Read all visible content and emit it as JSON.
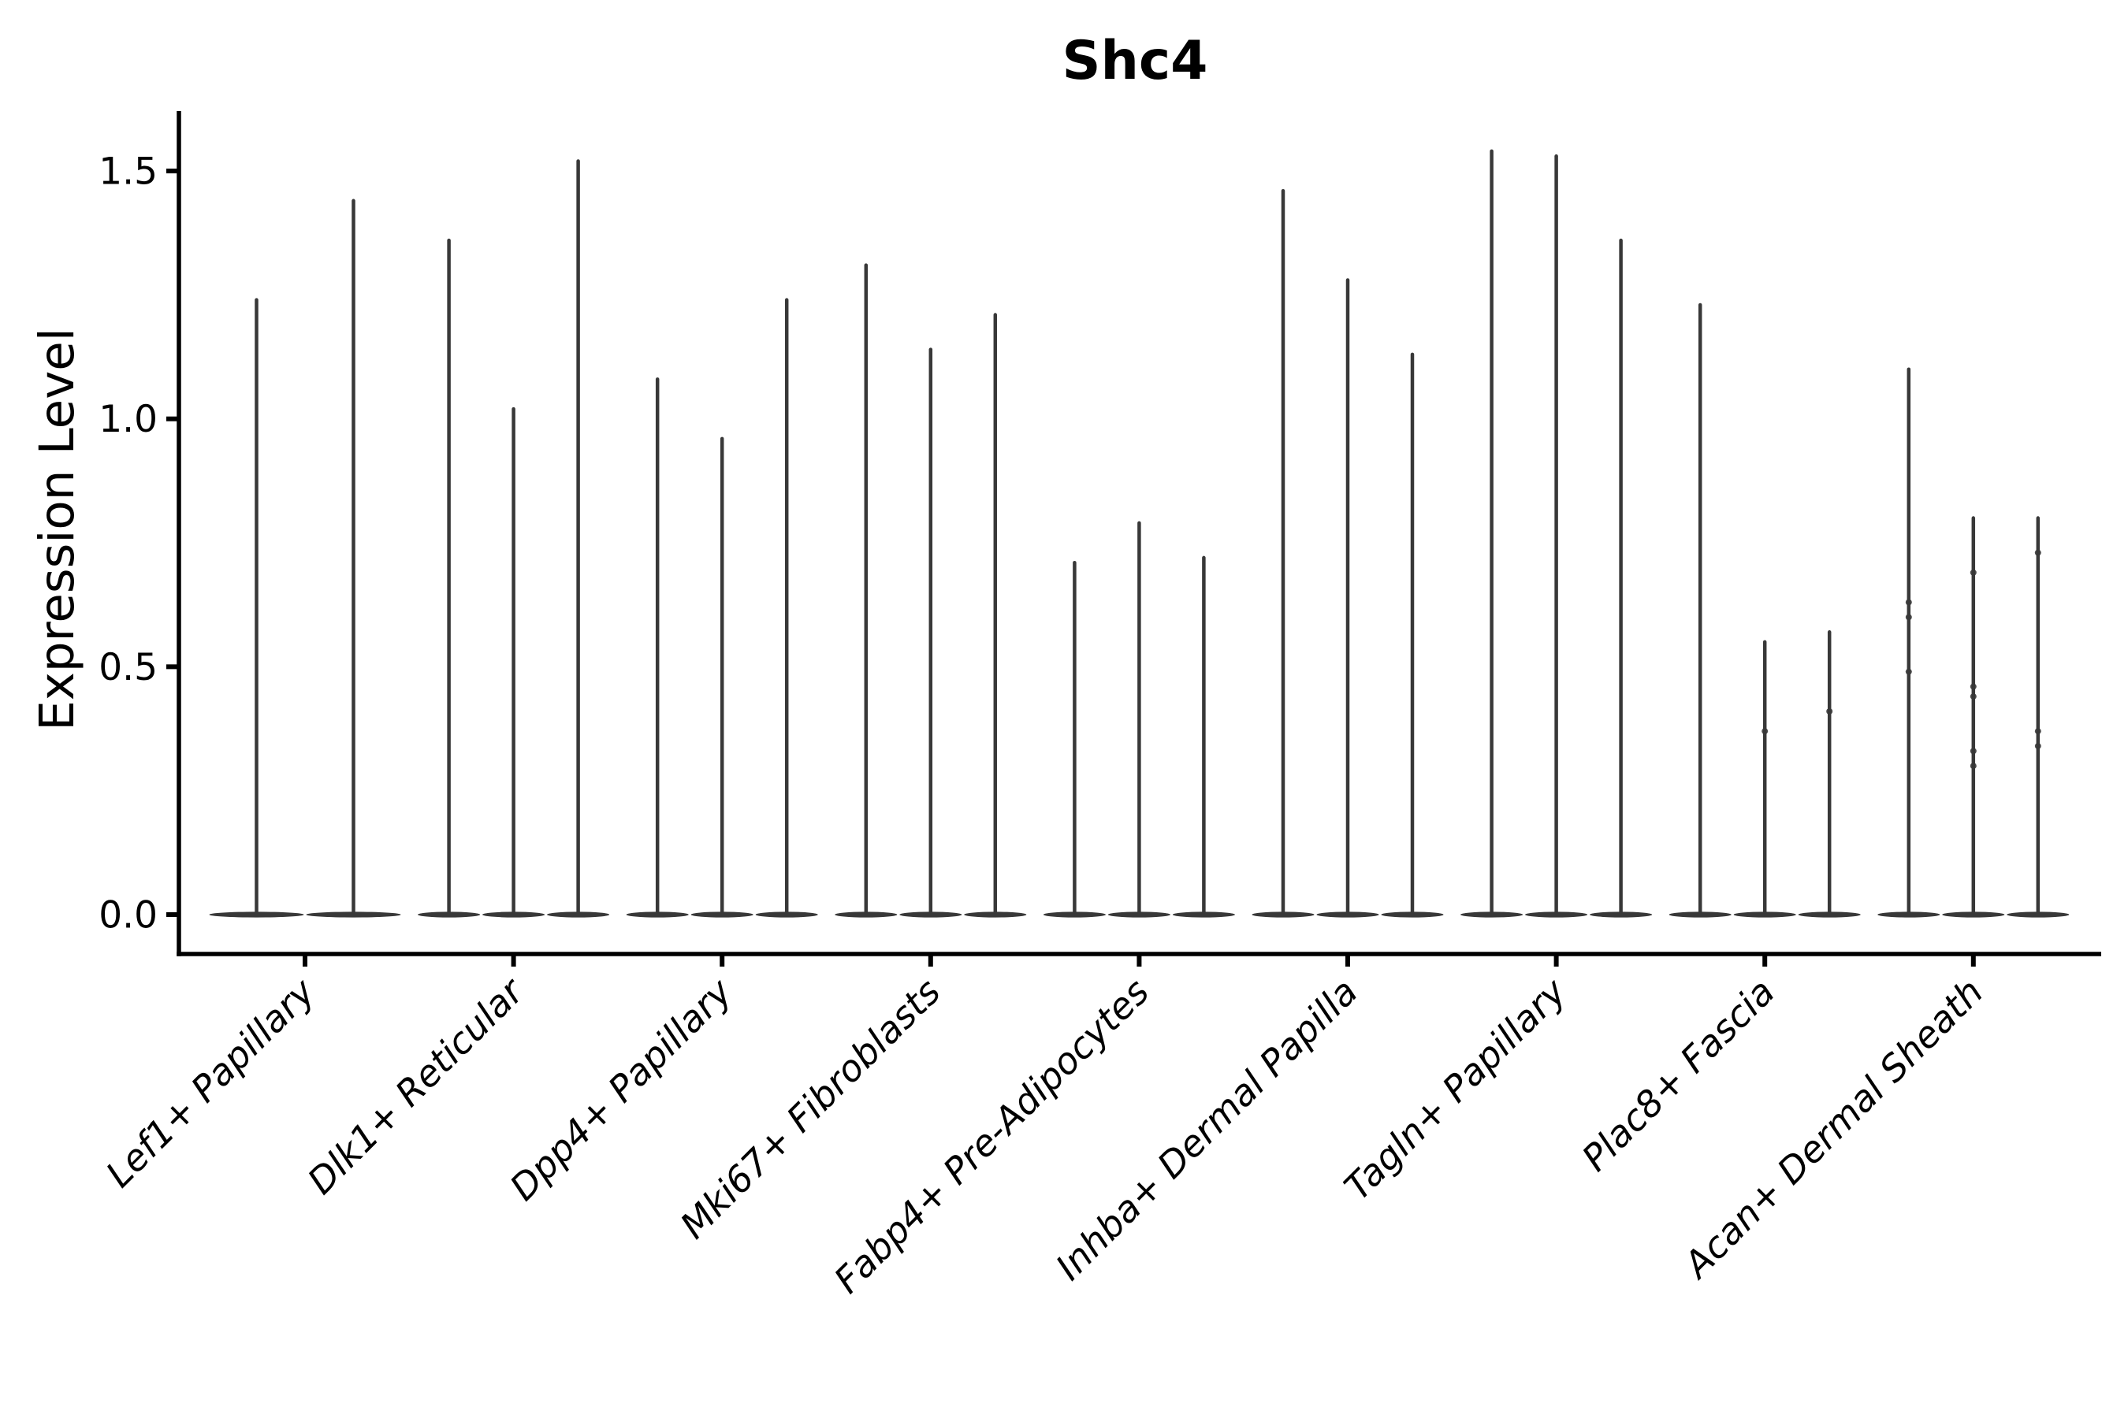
{
  "title": "Shc4",
  "style": {
    "background": "#ffffff",
    "violin_color": "#383838",
    "axis_color": "#000000",
    "text_color": "#000000"
  },
  "chart_data": {
    "type": "violin",
    "title": "Shc4",
    "xlabel": "",
    "ylabel": "Expression Level",
    "yticks": [
      0.0,
      0.5,
      1.0,
      1.5
    ],
    "ytick_labels": [
      "0.0",
      "0.5",
      "1.0",
      "1.5"
    ],
    "ylim": [
      -0.08,
      1.62
    ],
    "grid": false,
    "legend": null,
    "categories": [
      "Lef1+ Papillary",
      "Dlk1+ Reticular",
      "Dpp4+ Papillary",
      "Mki67+ Fibroblasts",
      "Fabp4+ Pre-Adipocytes",
      "Inhba+ Dermal Papilla",
      "Tagln+ Papillary",
      "Plac8+ Fascia",
      "Acan+ Dermal Sheath"
    ],
    "groups": [
      {
        "category": "Lef1+ Papillary",
        "violin_max": [
          1.24,
          1.44
        ],
        "dots": [
          [],
          []
        ]
      },
      {
        "category": "Dlk1+ Reticular",
        "violin_max": [
          1.36,
          1.02,
          1.52
        ],
        "dots": [
          [],
          [],
          []
        ]
      },
      {
        "category": "Dpp4+ Papillary",
        "violin_max": [
          1.08,
          0.96,
          1.24
        ],
        "dots": [
          [],
          [],
          []
        ]
      },
      {
        "category": "Mki67+ Fibroblasts",
        "violin_max": [
          1.31,
          1.14,
          1.21
        ],
        "dots": [
          [],
          [],
          []
        ]
      },
      {
        "category": "Fabp4+ Pre-Adipocytes",
        "violin_max": [
          0.71,
          0.79,
          0.72
        ],
        "dots": [
          [],
          [],
          []
        ]
      },
      {
        "category": "Inhba+ Dermal Papilla",
        "violin_max": [
          1.46,
          1.28,
          1.13
        ],
        "dots": [
          [],
          [],
          []
        ]
      },
      {
        "category": "Tagln+ Papillary",
        "violin_max": [
          1.54,
          1.53,
          1.36
        ],
        "dots": [
          [],
          [],
          []
        ]
      },
      {
        "category": "Plac8+ Fascia",
        "violin_max": [
          1.23,
          0.55,
          0.57
        ],
        "dots": [
          [],
          [
            0.37
          ],
          [
            0.41
          ]
        ]
      },
      {
        "category": "Acan+ Dermal Sheath",
        "violin_max": [
          1.1,
          0.8,
          0.8
        ],
        "dots": [
          [
            0.63,
            0.6,
            0.49
          ],
          [
            0.69,
            0.46,
            0.44,
            0.33,
            0.3
          ],
          [
            0.73,
            0.37,
            0.34
          ]
        ]
      }
    ],
    "distribution_note": "Zero-inflated violins: density bulk sits at 0 (flat lens) with a thin spike reaching each violin's maximum expression value."
  }
}
